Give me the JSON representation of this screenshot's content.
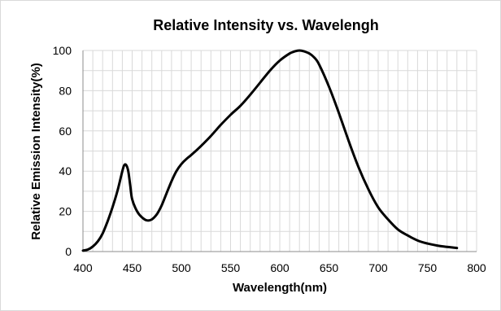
{
  "chart_data": {
    "type": "line",
    "title": "Relative Intensity vs. Wavelengh",
    "xlabel": "Wavelength(nm)",
    "ylabel": "Relative Emission Intensity(%)",
    "xlim": [
      400,
      800
    ],
    "ylim": [
      0,
      100
    ],
    "x_ticks": [
      400,
      450,
      500,
      550,
      600,
      650,
      700,
      750,
      800
    ],
    "y_ticks": [
      0,
      20,
      40,
      60,
      80,
      100
    ],
    "x_minor_step": 10,
    "y_minor_step": 10,
    "grid": true,
    "legend": "none",
    "series": [
      {
        "color": "#000000",
        "x": [
          400,
          405,
          410,
          415,
          420,
          425,
          430,
          435,
          440,
          442,
          444,
          446,
          448,
          450,
          455,
          460,
          465,
          470,
          475,
          480,
          485,
          490,
          495,
          500,
          505,
          510,
          520,
          530,
          540,
          550,
          560,
          570,
          580,
          590,
          600,
          610,
          615,
          620,
          625,
          630,
          635,
          640,
          650,
          660,
          670,
          680,
          690,
          700,
          710,
          720,
          730,
          740,
          750,
          760,
          770,
          780
        ],
        "y": [
          0.5,
          1,
          2.5,
          5,
          9,
          15,
          22,
          30,
          40,
          43,
          43,
          40,
          33,
          26,
          20,
          17,
          15.5,
          16,
          18.5,
          23,
          29,
          35,
          40,
          43.5,
          46,
          48,
          52.5,
          57.5,
          63,
          68,
          72.5,
          78,
          84,
          90,
          95,
          98.5,
          99.5,
          100,
          99.5,
          98.5,
          96.5,
          93,
          82,
          69,
          55,
          42,
          31,
          22,
          16,
          11,
          8,
          5.5,
          4,
          3,
          2.3,
          1.8
        ]
      }
    ]
  }
}
